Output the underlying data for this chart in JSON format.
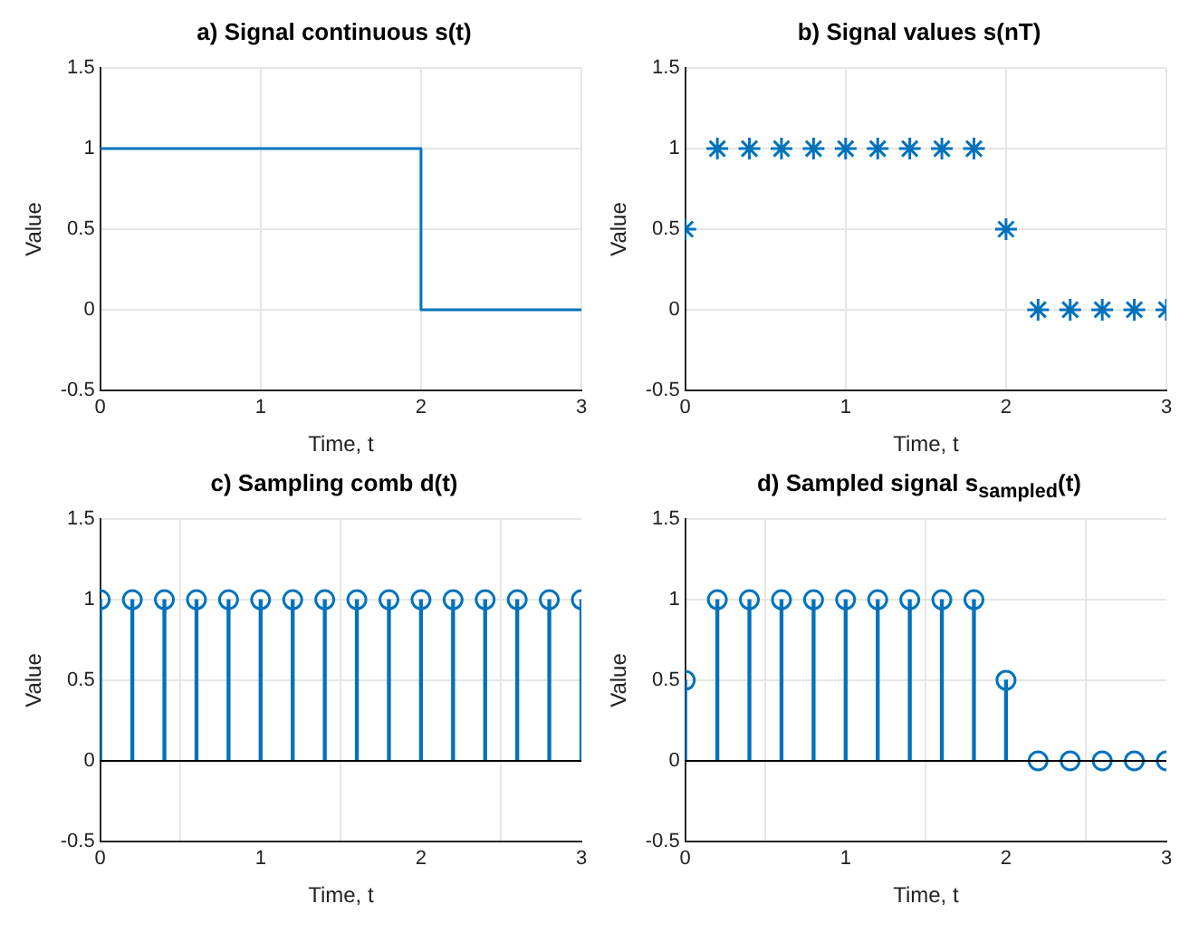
{
  "chart_data": [
    {
      "type": "line",
      "title": "a) Signal continuous s(t)",
      "xlabel": "Time, t",
      "ylabel": "Value",
      "x": [
        0,
        2,
        2,
        3
      ],
      "series": [
        {
          "color": "#0072bd",
          "values": [
            1,
            1,
            0,
            0
          ]
        }
      ],
      "xlim": [
        0,
        3
      ],
      "xticks": [
        0,
        1,
        2,
        3
      ],
      "ylim": [
        -0.5,
        1.5
      ],
      "yticks": [
        -0.5,
        0,
        0.5,
        1,
        1.5
      ],
      "grid": true,
      "marker": "none",
      "line_style": "solid"
    },
    {
      "type": "scatter",
      "title": "b) Signal values s(nT)",
      "xlabel": "Time, t",
      "ylabel": "Value",
      "x": [
        0,
        0.2,
        0.4,
        0.6,
        0.8,
        1,
        1.2,
        1.4,
        1.6,
        1.8,
        2,
        2.2,
        2.4,
        2.6,
        2.8,
        3
      ],
      "series": [
        {
          "color": "#0072bd",
          "values": [
            0.5,
            1,
            1,
            1,
            1,
            1,
            1,
            1,
            1,
            1,
            0.5,
            0,
            0,
            0,
            0,
            0
          ]
        }
      ],
      "xlim": [
        0,
        3
      ],
      "xticks": [
        0,
        1,
        2,
        3
      ],
      "ylim": [
        -0.5,
        1.5
      ],
      "yticks": [
        -0.5,
        0,
        0.5,
        1,
        1.5
      ],
      "grid": true,
      "marker": "cross"
    },
    {
      "type": "lollipop",
      "title": "c) Sampling comb d(t)",
      "xlabel": "Time, t",
      "ylabel": "Value",
      "x": [
        0,
        0.2,
        0.4,
        0.6,
        0.8,
        1,
        1.2,
        1.4,
        1.6,
        1.8,
        2,
        2.2,
        2.4,
        2.6,
        2.8,
        3
      ],
      "series": [
        {
          "color": "#0072bd",
          "values": [
            1,
            1,
            1,
            1,
            1,
            1,
            1,
            1,
            1,
            1,
            1,
            1,
            1,
            1,
            1,
            1
          ]
        }
      ],
      "xlim": [
        0,
        3
      ],
      "xticks": [
        0,
        1,
        2,
        3
      ],
      "ylim": [
        -0.5,
        1.5
      ],
      "yticks": [
        -0.5,
        0,
        0.5,
        1,
        1.5
      ],
      "grid": true,
      "marker": "circle",
      "ref_lines": [
        {
          "axis": "y",
          "value": 0,
          "color": "#000000"
        }
      ]
    },
    {
      "type": "lollipop",
      "title": "d) Sampled signal s$_{sampled}$(t)",
      "xlabel": "Time, t",
      "ylabel": "Value",
      "x": [
        0,
        0.2,
        0.4,
        0.6,
        0.8,
        1,
        1.2,
        1.4,
        1.6,
        1.8,
        2,
        2.2,
        2.4,
        2.6,
        2.8,
        3
      ],
      "series": [
        {
          "color": "#0072bd",
          "values": [
            0.5,
            1,
            1,
            1,
            1,
            1,
            1,
            1,
            1,
            1,
            0.5,
            0,
            0,
            0,
            0,
            0
          ]
        }
      ],
      "xlim": [
        0,
        3
      ],
      "xticks": [
        0,
        1,
        2,
        3
      ],
      "ylim": [
        -0.5,
        1.5
      ],
      "yticks": [
        -0.5,
        0,
        0.5,
        1,
        1.5
      ],
      "grid": true,
      "marker": "circle",
      "ref_lines": [
        {
          "axis": "y",
          "value": 0,
          "color": "#000000"
        }
      ]
    }
  ]
}
